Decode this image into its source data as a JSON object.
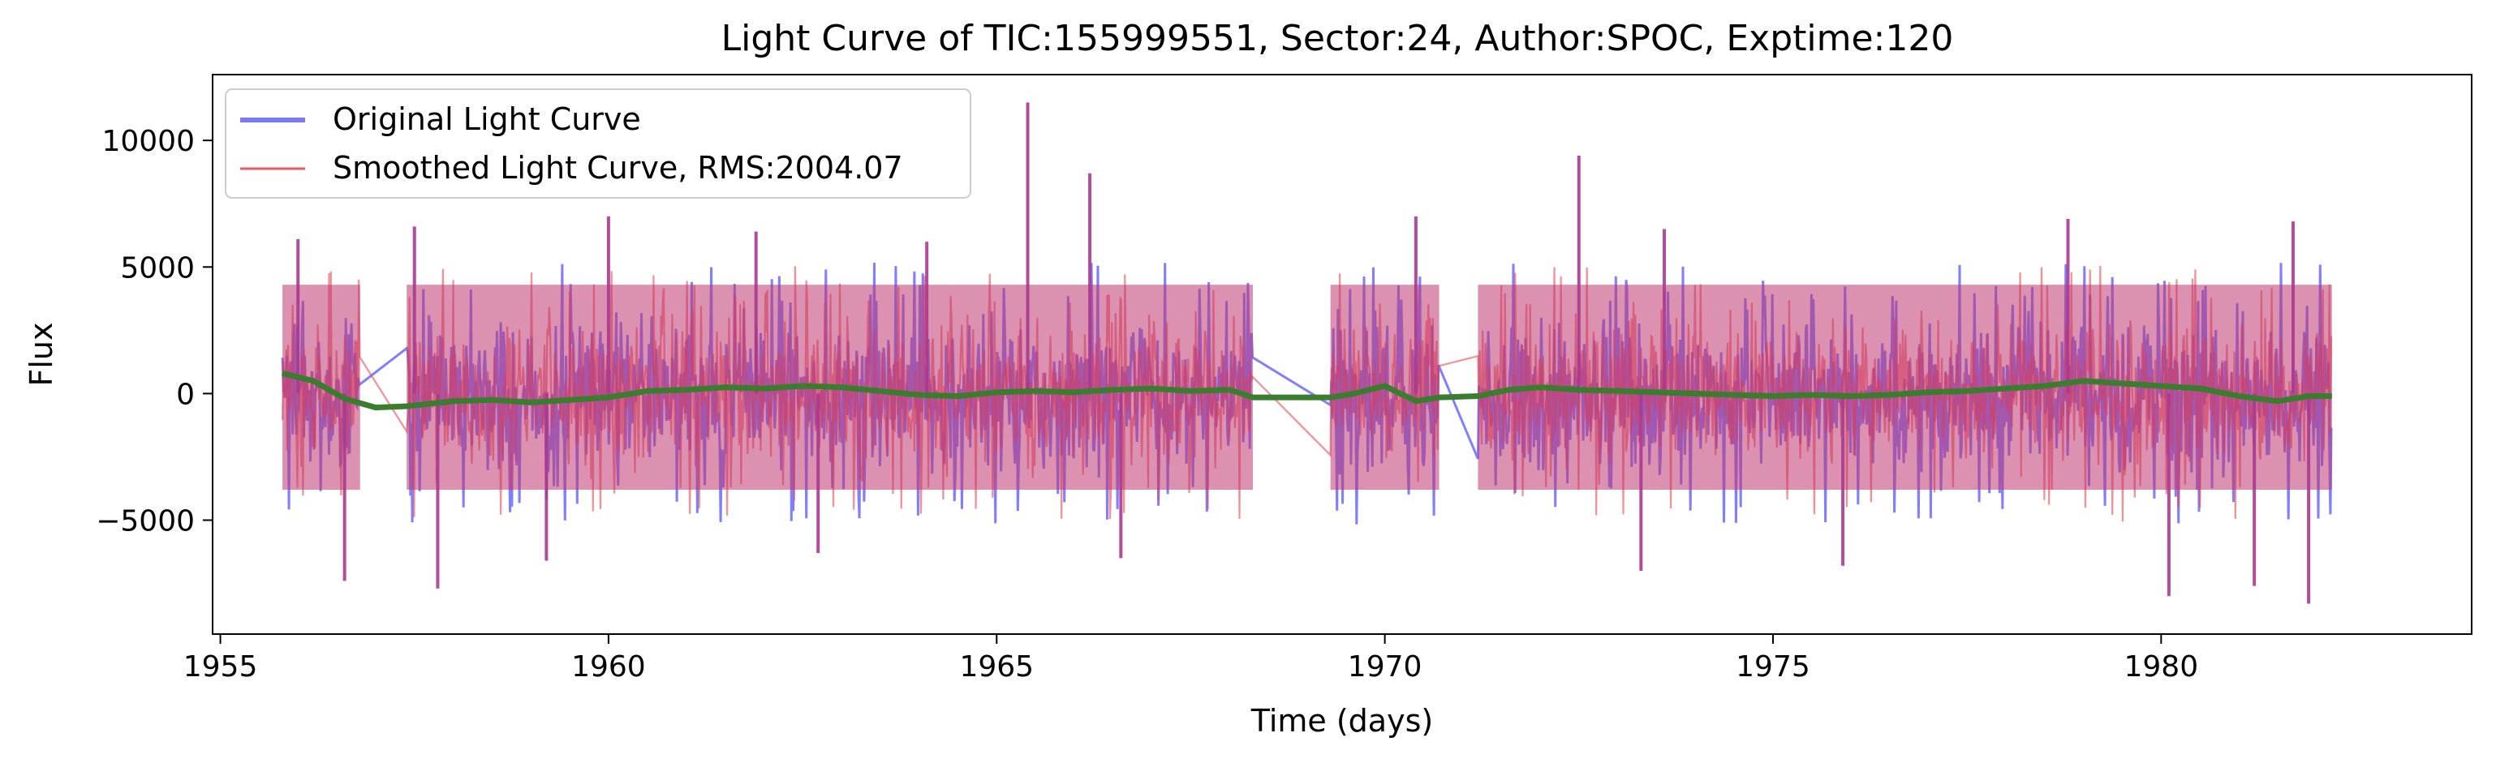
{
  "chart_data": {
    "type": "line",
    "title": "Light Curve of TIC:155999551, Sector:24, Author:SPOC, Exptime:120",
    "xlabel": "Time (days)",
    "ylabel": "Flux",
    "xlim": [
      1954.9,
      1984.0
    ],
    "ylim": [
      -9500,
      12600
    ],
    "xticks": [
      1955,
      1960,
      1965,
      1970,
      1975,
      1980
    ],
    "yticks": [
      -5000,
      0,
      5000,
      10000
    ],
    "xtick_labels": [
      "1955",
      "1960",
      "1965",
      "1970",
      "1975",
      "1980"
    ],
    "ytick_labels": [
      "−5000",
      "0",
      "5000",
      "10000"
    ],
    "grid": false,
    "legend_position": "upper-left",
    "segments": [
      [
        1955.8,
        1956.8
      ],
      [
        1957.4,
        1968.3
      ],
      [
        1969.3,
        1970.7
      ],
      [
        1971.2,
        1982.2
      ]
    ],
    "series": [
      {
        "name": "Original Light Curve",
        "color": "#6a6aff",
        "amplitude": 4500,
        "noise_sign": "symmetric"
      },
      {
        "name": "Smoothed Light Curve, RMS:2004.07",
        "color": "#e8474e",
        "amplitude": 4400
      },
      {
        "name": "",
        "color": "#3a7d2e",
        "points": [
          [
            1955.8,
            800
          ],
          [
            1956.2,
            500
          ],
          [
            1956.6,
            -200
          ],
          [
            1957.0,
            -550
          ],
          [
            1957.4,
            -500
          ],
          [
            1958.0,
            -300
          ],
          [
            1958.5,
            -250
          ],
          [
            1959.0,
            -350
          ],
          [
            1959.5,
            -250
          ],
          [
            1960.0,
            -150
          ],
          [
            1960.5,
            100
          ],
          [
            1961.0,
            150
          ],
          [
            1961.5,
            250
          ],
          [
            1962.0,
            200
          ],
          [
            1962.5,
            300
          ],
          [
            1963.0,
            250
          ],
          [
            1963.5,
            100
          ],
          [
            1964.0,
            -50
          ],
          [
            1964.5,
            -100
          ],
          [
            1965.0,
            50
          ],
          [
            1965.5,
            100
          ],
          [
            1966.0,
            50
          ],
          [
            1966.5,
            150
          ],
          [
            1967.0,
            200
          ],
          [
            1967.5,
            100
          ],
          [
            1968.0,
            150
          ],
          [
            1968.3,
            -150
          ],
          [
            1969.3,
            -150
          ],
          [
            1969.6,
            0
          ],
          [
            1970.0,
            300
          ],
          [
            1970.4,
            -300
          ],
          [
            1970.7,
            -150
          ],
          [
            1971.2,
            -100
          ],
          [
            1971.6,
            150
          ],
          [
            1972.0,
            250
          ],
          [
            1972.5,
            150
          ],
          [
            1973.0,
            100
          ],
          [
            1973.5,
            50
          ],
          [
            1974.0,
            0
          ],
          [
            1974.5,
            -50
          ],
          [
            1975.0,
            -100
          ],
          [
            1975.5,
            -50
          ],
          [
            1976.0,
            -100
          ],
          [
            1976.5,
            -50
          ],
          [
            1977.0,
            50
          ],
          [
            1977.5,
            100
          ],
          [
            1978.0,
            200
          ],
          [
            1978.5,
            300
          ],
          [
            1979.0,
            500
          ],
          [
            1979.5,
            400
          ],
          [
            1980.0,
            300
          ],
          [
            1980.5,
            200
          ],
          [
            1981.0,
            -100
          ],
          [
            1981.5,
            -300
          ],
          [
            1981.9,
            -100
          ],
          [
            1982.2,
            -100
          ]
        ]
      }
    ],
    "spikes": [
      {
        "x": 1956.0,
        "y": 6100
      },
      {
        "x": 1957.5,
        "y": 6600
      },
      {
        "x": 1960.0,
        "y": 7000
      },
      {
        "x": 1961.9,
        "y": 6400
      },
      {
        "x": 1964.1,
        "y": 6000
      },
      {
        "x": 1965.4,
        "y": 11500
      },
      {
        "x": 1966.2,
        "y": 8700
      },
      {
        "x": 1970.4,
        "y": 7000
      },
      {
        "x": 1972.5,
        "y": 9400
      },
      {
        "x": 1973.6,
        "y": 6500
      },
      {
        "x": 1978.8,
        "y": 6900
      },
      {
        "x": 1981.7,
        "y": 6800
      },
      {
        "x": 1956.6,
        "y": -7400
      },
      {
        "x": 1957.8,
        "y": -7700
      },
      {
        "x": 1959.2,
        "y": -6600
      },
      {
        "x": 1962.7,
        "y": -6300
      },
      {
        "x": 1966.6,
        "y": -6500
      },
      {
        "x": 1973.3,
        "y": -7000
      },
      {
        "x": 1975.9,
        "y": -6800
      },
      {
        "x": 1980.1,
        "y": -8000
      },
      {
        "x": 1981.2,
        "y": -7600
      },
      {
        "x": 1981.9,
        "y": -8300
      }
    ]
  }
}
